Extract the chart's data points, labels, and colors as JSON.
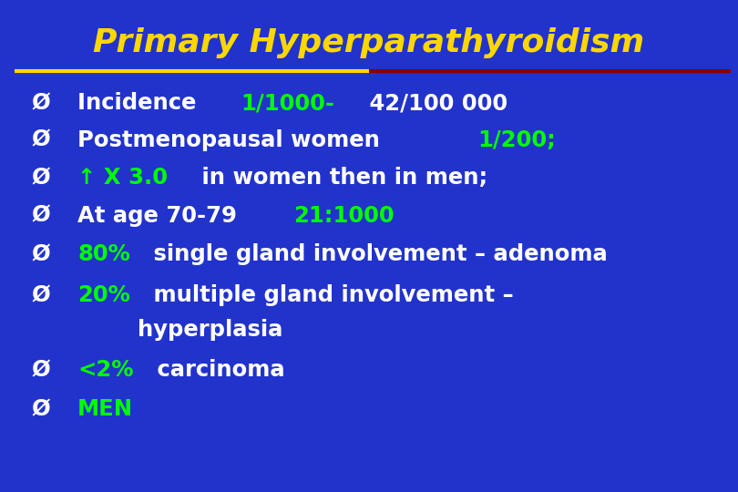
{
  "title": "Primary Hyperparathyroidism",
  "title_color": "#FFD700",
  "background_color": "#2233CC",
  "separator_color_left": "#FFD700",
  "separator_color_right": "#8B0000",
  "white_text": "#FFFFFF",
  "green_text": "#00FF00",
  "lines": [
    {
      "parts": [
        {
          "text": "Incidence ",
          "color": "#FFFFFF"
        },
        {
          "text": "1/1000-",
          "color": "#00FF00"
        },
        {
          "text": " 42/100 000",
          "color": "#FFFFFF"
        }
      ]
    },
    {
      "parts": [
        {
          "text": "Postmenopausal women ",
          "color": "#FFFFFF"
        },
        {
          "text": "1/200;",
          "color": "#00FF00"
        }
      ]
    },
    {
      "parts": [
        {
          "text": "↑ X 3.0",
          "color": "#00FF00"
        },
        {
          "text": " in women then in men;",
          "color": "#FFFFFF"
        }
      ]
    },
    {
      "parts": [
        {
          "text": "At age 70-79 ",
          "color": "#FFFFFF"
        },
        {
          "text": "21:1000",
          "color": "#00FF00"
        }
      ]
    },
    {
      "parts": [
        {
          "text": "80%",
          "color": "#00FF00"
        },
        {
          "text": " single gland involvement – adenoma",
          "color": "#FFFFFF"
        }
      ]
    },
    {
      "parts": [
        {
          "text": "20%",
          "color": "#00FF00"
        },
        {
          "text": " multiple gland involvement –",
          "color": "#FFFFFF"
        }
      ]
    },
    {
      "parts": [
        {
          "text": "    hyperplasia",
          "color": "#FFFFFF"
        }
      ],
      "indent": true
    },
    {
      "parts": [
        {
          "text": "<2%",
          "color": "#00FF00"
        },
        {
          "text": " carcinoma",
          "color": "#FFFFFF"
        }
      ]
    },
    {
      "parts": [
        {
          "text": "MEN",
          "color": "#00FF00"
        }
      ]
    }
  ],
  "figwidth": 8.1,
  "figheight": 5.4,
  "dpi": 100
}
